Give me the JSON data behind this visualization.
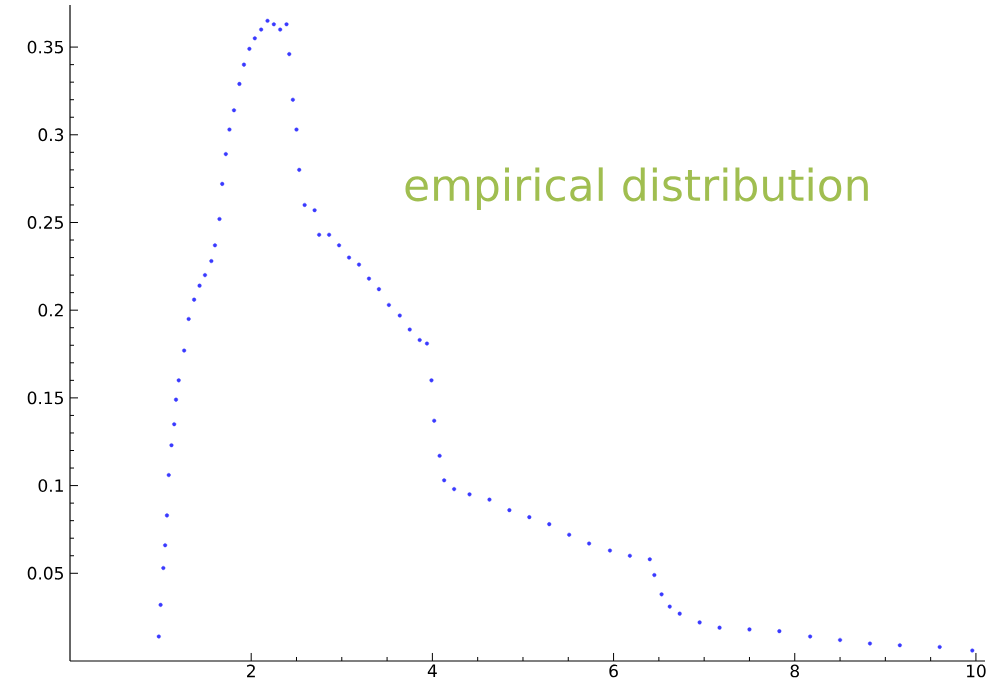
{
  "chart_data": {
    "type": "scatter",
    "color": "#3a3aff",
    "grid": false,
    "annotations": [
      "empirical distribution"
    ],
    "xlim": [
      0,
      10.1
    ],
    "ylim": [
      0,
      0.374
    ],
    "xticks": [
      2,
      4,
      6,
      8,
      10
    ],
    "yticks": [
      0.05,
      0.1,
      0.15,
      0.2,
      0.25,
      0.3,
      0.35
    ],
    "x": [
      0.98,
      1.0,
      1.03,
      1.05,
      1.07,
      1.09,
      1.12,
      1.15,
      1.17,
      1.2,
      1.26,
      1.31,
      1.37,
      1.43,
      1.49,
      1.56,
      1.6,
      1.65,
      1.68,
      1.72,
      1.76,
      1.81,
      1.87,
      1.92,
      1.98,
      2.04,
      2.11,
      2.18,
      2.25,
      2.32,
      2.39,
      2.42,
      2.46,
      2.5,
      2.53,
      2.59,
      2.7,
      2.75,
      2.86,
      2.97,
      3.08,
      3.19,
      3.3,
      3.41,
      3.52,
      3.64,
      3.75,
      3.86,
      3.94,
      3.99,
      4.02,
      4.08,
      4.13,
      4.24,
      4.41,
      4.63,
      4.85,
      5.07,
      5.29,
      5.51,
      5.73,
      5.96,
      6.18,
      6.4,
      6.45,
      6.53,
      6.62,
      6.73,
      6.95,
      7.17,
      7.5,
      7.83,
      8.17,
      8.5,
      8.83,
      9.16,
      9.6,
      9.96
    ],
    "values": [
      0.014,
      0.032,
      0.053,
      0.066,
      0.083,
      0.106,
      0.123,
      0.135,
      0.149,
      0.16,
      0.177,
      0.195,
      0.206,
      0.214,
      0.22,
      0.228,
      0.237,
      0.252,
      0.272,
      0.289,
      0.303,
      0.314,
      0.329,
      0.34,
      0.349,
      0.355,
      0.36,
      0.365,
      0.363,
      0.36,
      0.363,
      0.346,
      0.32,
      0.303,
      0.28,
      0.26,
      0.257,
      0.243,
      0.243,
      0.237,
      0.23,
      0.226,
      0.218,
      0.212,
      0.203,
      0.197,
      0.189,
      0.183,
      0.181,
      0.16,
      0.137,
      0.117,
      0.103,
      0.098,
      0.095,
      0.092,
      0.086,
      0.082,
      0.078,
      0.072,
      0.067,
      0.063,
      0.06,
      0.058,
      0.049,
      0.038,
      0.031,
      0.027,
      0.022,
      0.019,
      0.018,
      0.017,
      0.014,
      0.012,
      0.01,
      0.009,
      0.008,
      0.006
    ]
  }
}
